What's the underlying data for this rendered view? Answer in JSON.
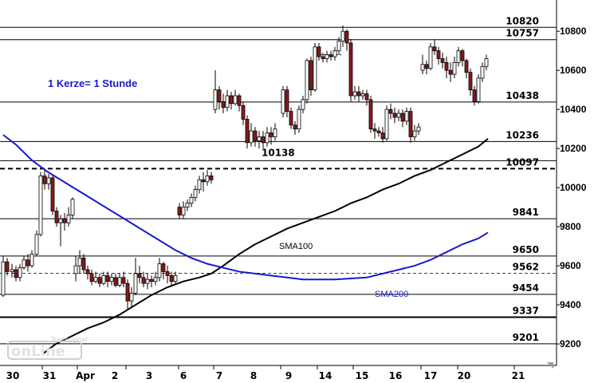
{
  "chart_data": {
    "type": "candlestick",
    "title": "",
    "xlabel": "",
    "ylabel": "",
    "ylim": [
      9090,
      10960
    ],
    "y_ticks": [
      9200,
      9400,
      9600,
      9800,
      10000,
      10200,
      10400,
      10600,
      10800
    ],
    "y_tick_labels": [
      "9200",
      "9400",
      "9600",
      "9800",
      "10000",
      "10200",
      "10400",
      "10600",
      "10800"
    ],
    "x_labels": [
      "30",
      "31",
      "Apr",
      "2",
      "3",
      "6",
      "7",
      "8",
      "9",
      "14",
      "15",
      "16",
      "17",
      "20",
      "21"
    ],
    "annotation": "1 Kerze= 1 Stunde",
    "annotation_color": "#1a1acc",
    "horizontal_levels": [
      {
        "value": 10820,
        "label": "10820",
        "style": "solid"
      },
      {
        "value": 10757,
        "label": "10757",
        "style": "solid"
      },
      {
        "value": 10438,
        "label": "10438",
        "style": "solid"
      },
      {
        "value": 10236,
        "label": "10236",
        "style": "solid"
      },
      {
        "value": 10138,
        "label": "10138",
        "style": "solid"
      },
      {
        "value": 10097,
        "label": "10097",
        "style": "dashed-bold"
      },
      {
        "value": 9841,
        "label": "9841",
        "style": "solid"
      },
      {
        "value": 9650,
        "label": "9650",
        "style": "solid"
      },
      {
        "value": 9562,
        "label": "9562",
        "style": "dashed"
      },
      {
        "value": 9454,
        "label": "9454",
        "style": "solid"
      },
      {
        "value": 9337,
        "label": "9337",
        "style": "solid-bold"
      },
      {
        "value": 9201,
        "label": "9201",
        "style": "solid"
      }
    ],
    "series": [
      {
        "name": "SMA100",
        "color": "#000000",
        "points": [
          [
            54,
            9150
          ],
          [
            70,
            9200
          ],
          [
            90,
            9240
          ],
          [
            110,
            9280
          ],
          [
            130,
            9310
          ],
          [
            150,
            9350
          ],
          [
            170,
            9400
          ],
          [
            190,
            9450
          ],
          [
            210,
            9490
          ],
          [
            230,
            9520
          ],
          [
            250,
            9540
          ],
          [
            265,
            9560
          ],
          [
            280,
            9600
          ],
          [
            300,
            9660
          ],
          [
            320,
            9710
          ],
          [
            340,
            9750
          ],
          [
            360,
            9790
          ],
          [
            380,
            9820
          ],
          [
            400,
            9850
          ],
          [
            420,
            9880
          ],
          [
            440,
            9920
          ],
          [
            460,
            9950
          ],
          [
            480,
            9990
          ],
          [
            500,
            10020
          ],
          [
            520,
            10060
          ],
          [
            540,
            10090
          ],
          [
            560,
            10130
          ],
          [
            580,
            10170
          ],
          [
            600,
            10210
          ],
          [
            612,
            10250
          ]
        ]
      },
      {
        "name": "SMA200",
        "color": "#1a1acc",
        "points": [
          [
            4,
            10270
          ],
          [
            20,
            10220
          ],
          [
            40,
            10140
          ],
          [
            60,
            10080
          ],
          [
            80,
            10030
          ],
          [
            100,
            9980
          ],
          [
            120,
            9930
          ],
          [
            140,
            9880
          ],
          [
            160,
            9830
          ],
          [
            180,
            9780
          ],
          [
            200,
            9730
          ],
          [
            220,
            9680
          ],
          [
            240,
            9640
          ],
          [
            260,
            9610
          ],
          [
            280,
            9590
          ],
          [
            300,
            9570
          ],
          [
            320,
            9560
          ],
          [
            340,
            9550
          ],
          [
            360,
            9540
          ],
          [
            380,
            9530
          ],
          [
            400,
            9530
          ],
          [
            420,
            9530
          ],
          [
            440,
            9535
          ],
          [
            460,
            9540
          ],
          [
            480,
            9560
          ],
          [
            500,
            9580
          ],
          [
            520,
            9600
          ],
          [
            540,
            9630
          ],
          [
            560,
            9670
          ],
          [
            580,
            9710
          ],
          [
            600,
            9740
          ],
          [
            612,
            9770
          ]
        ]
      }
    ],
    "candles_by_session": [
      [
        [
          4,
          9450,
          9620,
          9440,
          9650
        ],
        [
          9,
          9620,
          9570,
          9550,
          9640
        ],
        [
          15,
          9570,
          9580,
          9540,
          9610
        ],
        [
          20,
          9580,
          9540,
          9520,
          9600
        ],
        [
          25,
          9540,
          9590,
          9520,
          9610
        ],
        [
          30,
          9590,
          9630,
          9580,
          9650
        ],
        [
          35,
          9630,
          9600,
          9570,
          9660
        ],
        [
          40,
          9600,
          9660,
          9590,
          9680
        ],
        [
          46,
          9660,
          9760,
          9650,
          9780
        ]
      ],
      [
        [
          51,
          9760,
          10060,
          9750,
          10080
        ],
        [
          56,
          10060,
          10020,
          9990,
          10090
        ],
        [
          61,
          10020,
          10050,
          9990,
          10070
        ],
        [
          66,
          10050,
          9880,
          9860,
          10060
        ],
        [
          71,
          9880,
          9820,
          9800,
          9900
        ],
        [
          76,
          9820,
          9840,
          9700,
          9860
        ],
        [
          81,
          9840,
          9820,
          9780,
          9870
        ],
        [
          86,
          9820,
          9860,
          9800,
          9900
        ],
        [
          91,
          9860,
          9940,
          9840,
          9950
        ]
      ],
      [
        [
          95,
          9560,
          9600,
          9520,
          9650
        ],
        [
          100,
          9600,
          9640,
          9560,
          9680
        ],
        [
          105,
          9640,
          9580,
          9560,
          9660
        ],
        [
          110,
          9580,
          9560,
          9530,
          9600
        ],
        [
          115,
          9560,
          9520,
          9500,
          9580
        ],
        [
          120,
          9520,
          9540,
          9510,
          9570
        ],
        [
          125,
          9540,
          9510,
          9490,
          9560
        ],
        [
          130,
          9510,
          9550,
          9500,
          9570
        ],
        [
          135,
          9550,
          9520,
          9490,
          9570
        ],
        [
          140,
          9520,
          9540,
          9500,
          9560
        ],
        [
          145,
          9540,
          9500,
          9490,
          9560
        ],
        [
          150,
          9500,
          9540,
          9490,
          9560
        ],
        [
          155,
          9540,
          9510,
          9490,
          9570
        ]
      ],
      [
        [
          160,
          9510,
          9420,
          9380,
          9530
        ],
        [
          165,
          9420,
          9460,
          9390,
          9490
        ],
        [
          170,
          9460,
          9560,
          9450,
          9640
        ],
        [
          175,
          9560,
          9540,
          9510,
          9600
        ],
        [
          180,
          9540,
          9510,
          9490,
          9570
        ],
        [
          185,
          9510,
          9530,
          9480,
          9560
        ],
        [
          190,
          9530,
          9520,
          9490,
          9550
        ],
        [
          195,
          9520,
          9540,
          9500,
          9570
        ],
        [
          200,
          9540,
          9610,
          9520,
          9640
        ],
        [
          205,
          9610,
          9570,
          9530,
          9620
        ],
        [
          210,
          9570,
          9550,
          9510,
          9600
        ],
        [
          215,
          9550,
          9520,
          9500,
          9570
        ],
        [
          220,
          9520,
          9550,
          9500,
          9570
        ]
      ],
      [
        [
          225,
          9900,
          9860,
          9840,
          9920
        ],
        [
          230,
          9860,
          9900,
          9840,
          9930
        ],
        [
          235,
          9900,
          9920,
          9880,
          9940
        ],
        [
          240,
          9920,
          9950,
          9900,
          9970
        ],
        [
          245,
          9950,
          9990,
          9930,
          10010
        ],
        [
          250,
          9990,
          10040,
          9970,
          10060
        ],
        [
          255,
          10040,
          10030,
          9980,
          10080
        ],
        [
          260,
          10030,
          10060,
          10010,
          10090
        ],
        [
          265,
          10060,
          10040,
          10020,
          10080
        ]
      ],
      [
        [
          270,
          10400,
          10500,
          10380,
          10600
        ],
        [
          275,
          10500,
          10440,
          10400,
          10520
        ],
        [
          280,
          10440,
          10410,
          10380,
          10480
        ],
        [
          285,
          10410,
          10470,
          10390,
          10500
        ],
        [
          290,
          10470,
          10430,
          10400,
          10490
        ],
        [
          295,
          10430,
          10470,
          10420,
          10500
        ],
        [
          300,
          10470,
          10420,
          10390,
          10480
        ],
        [
          305,
          10420,
          10350,
          10320,
          10440
        ],
        [
          310,
          10350,
          10230,
          10200,
          10370
        ],
        [
          315,
          10230,
          10290,
          10210,
          10330
        ],
        [
          320,
          10290,
          10240,
          10210,
          10310
        ],
        [
          325,
          10240,
          10260,
          10200,
          10290
        ],
        [
          330,
          10260,
          10230,
          10200,
          10290
        ],
        [
          335,
          10230,
          10280,
          10210,
          10310
        ],
        [
          340,
          10280,
          10260,
          10220,
          10310
        ],
        [
          345,
          10260,
          10300,
          10240,
          10330
        ]
      ],
      [
        [
          355,
          10380,
          10500,
          10360,
          10520
        ],
        [
          360,
          10500,
          10390,
          10360,
          10520
        ],
        [
          365,
          10390,
          10320,
          10300,
          10410
        ],
        [
          370,
          10320,
          10300,
          10270,
          10340
        ],
        [
          375,
          10300,
          10400,
          10280,
          10420
        ],
        [
          380,
          10400,
          10450,
          10380,
          10470
        ],
        [
          385,
          10450,
          10650,
          10430,
          10660
        ],
        [
          390,
          10650,
          10500,
          10470,
          10670
        ],
        [
          395,
          10500,
          10720,
          10490,
          10740
        ]
      ],
      [
        [
          400,
          10720,
          10670,
          10650,
          10740
        ],
        [
          405,
          10670,
          10660,
          10640,
          10690
        ],
        [
          410,
          10660,
          10680,
          10640,
          10700
        ],
        [
          415,
          10680,
          10670,
          10650,
          10700
        ],
        [
          420,
          10670,
          10700,
          10650,
          10720
        ],
        [
          425,
          10700,
          10750,
          10680,
          10770
        ],
        [
          430,
          10750,
          10800,
          10720,
          10830
        ],
        [
          435,
          10800,
          10740,
          10700,
          10810
        ],
        [
          440,
          10740,
          10470,
          10440,
          10760
        ]
      ],
      [
        [
          445,
          10470,
          10490,
          10450,
          10520
        ],
        [
          450,
          10490,
          10470,
          10440,
          10520
        ],
        [
          455,
          10470,
          10480,
          10450,
          10500
        ],
        [
          460,
          10480,
          10450,
          10420,
          10500
        ],
        [
          465,
          10450,
          10300,
          10280,
          10470
        ],
        [
          470,
          10300,
          10290,
          10250,
          10330
        ],
        [
          475,
          10290,
          10280,
          10260,
          10310
        ],
        [
          480,
          10280,
          10250,
          10230,
          10310
        ],
        [
          485,
          10250,
          10400,
          10240,
          10420
        ],
        [
          490,
          10400,
          10380,
          10350,
          10430
        ],
        [
          495,
          10380,
          10360,
          10330,
          10410
        ],
        [
          500,
          10360,
          10380,
          10340,
          10400
        ],
        [
          505,
          10380,
          10340,
          10310,
          10400
        ],
        [
          510,
          10340,
          10390,
          10320,
          10410
        ],
        [
          515,
          10390,
          10260,
          10230,
          10410
        ],
        [
          520,
          10260,
          10290,
          10240,
          10320
        ],
        [
          525,
          10290,
          10310,
          10270,
          10330
        ]
      ],
      [
        [
          530,
          10600,
          10630,
          10580,
          10680
        ],
        [
          535,
          10630,
          10610,
          10580,
          10650
        ],
        [
          540,
          10610,
          10720,
          10600,
          10740
        ],
        [
          545,
          10720,
          10700,
          10680,
          10760
        ],
        [
          550,
          10700,
          10660,
          10630,
          10720
        ],
        [
          555,
          10660,
          10640,
          10610,
          10690
        ],
        [
          560,
          10640,
          10600,
          10560,
          10670
        ],
        [
          565,
          10600,
          10580,
          10540,
          10640
        ],
        [
          570,
          10580,
          10640,
          10560,
          10670
        ],
        [
          575,
          10640,
          10700,
          10620,
          10720
        ],
        [
          580,
          10700,
          10650,
          10620,
          10710
        ],
        [
          585,
          10650,
          10590,
          10560,
          10660
        ],
        [
          590,
          10590,
          10500,
          10470,
          10610
        ],
        [
          595,
          10500,
          10440,
          10420,
          10520
        ],
        [
          600,
          10440,
          10560,
          10430,
          10580
        ],
        [
          605,
          10560,
          10620,
          10540,
          10640
        ],
        [
          610,
          10620,
          10660,
          10600,
          10680
        ]
      ]
    ],
    "session_separators": [
      53,
      97,
      158,
      224,
      268,
      352,
      398,
      443,
      528,
      574,
      645
    ],
    "current_price_dotted": {
      "from_x": 398,
      "to_x": 430,
      "value": 10680
    },
    "up_color": "#ffffff",
    "down_color": "#8b1a1a"
  },
  "labels": {
    "sma100": "SMA100",
    "sma200": "SMA200"
  },
  "watermark": "Tradesignal online",
  "colors": {
    "background": "#ffffff",
    "sma200": "#1a1acc",
    "sma100": "#000000",
    "candle_down": "#8b1a1a"
  }
}
